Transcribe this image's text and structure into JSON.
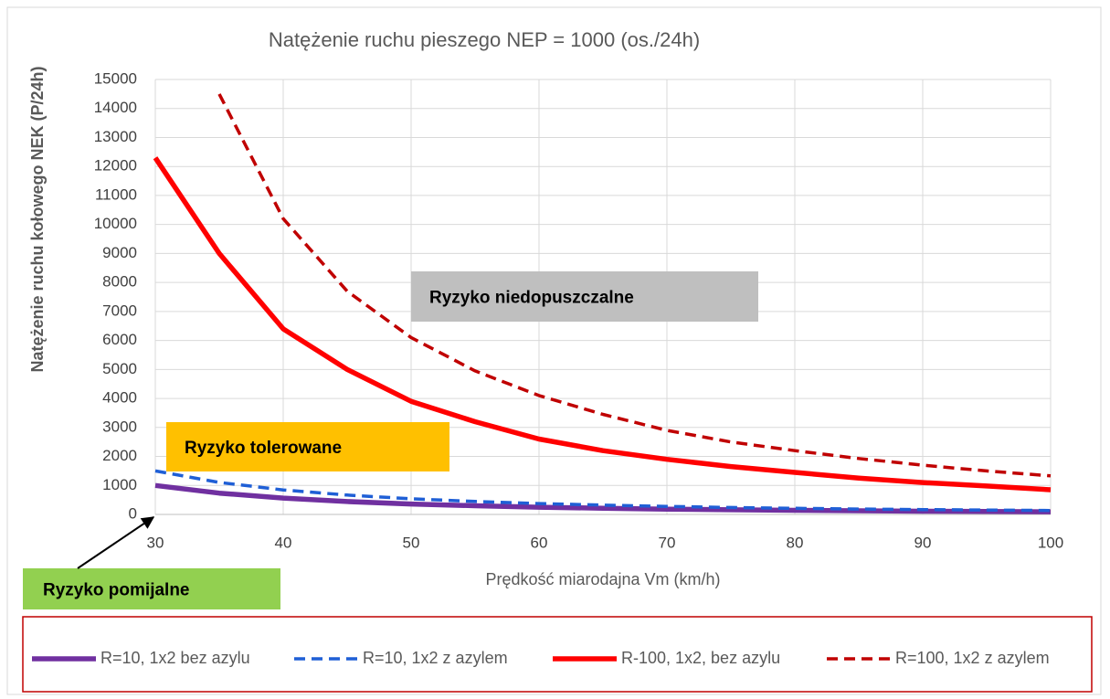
{
  "chart_data": {
    "type": "line",
    "title": "Natężenie ruchu pieszego NEP = 1000 (os./24h)",
    "x_label": "Prędkość miarodajna Vm (km/h)",
    "y_label": "Natężenie ruchu kołowego NEK (P/24h)",
    "x": [
      30,
      35,
      40,
      45,
      50,
      55,
      60,
      65,
      70,
      75,
      80,
      85,
      90,
      95,
      100
    ],
    "series": [
      {
        "name": "R=10, 1x2 bez azylu",
        "color": "#7030a0",
        "line_style": "solid",
        "values": [
          1000,
          735,
          563,
          445,
          360,
          298,
          250,
          213,
          184,
          160,
          141,
          125,
          111,
          100,
          90
        ]
      },
      {
        "name": "R=10, 1x2 z azylem",
        "color": "#1f5fd6",
        "line_style": "dashed",
        "values": [
          1500,
          1102,
          844,
          667,
          540,
          446,
          375,
          320,
          276,
          240,
          211,
          187,
          167,
          150,
          135
        ]
      },
      {
        "name": "R-100, 1x2, bez azylu",
        "color": "#ff0000",
        "line_style": "solid",
        "values": [
          12300,
          9000,
          6400,
          5000,
          3900,
          3200,
          2600,
          2200,
          1900,
          1650,
          1450,
          1250,
          1100,
          980,
          850
        ]
      },
      {
        "name": "R=100, 1x2 z azylem",
        "color": "#c00000",
        "line_style": "dashed",
        "values": [
          null,
          14500,
          10200,
          7700,
          6100,
          4950,
          4100,
          3450,
          2900,
          2500,
          2200,
          1930,
          1700,
          1500,
          1330
        ]
      }
    ],
    "xlim": [
      30,
      100
    ],
    "xticks": [
      30,
      40,
      50,
      60,
      70,
      80,
      90,
      100
    ],
    "ylim": [
      0,
      15000
    ],
    "yticks": [
      0,
      1000,
      2000,
      3000,
      4000,
      5000,
      6000,
      7000,
      8000,
      9000,
      10000,
      11000,
      12000,
      13000,
      14000,
      15000
    ],
    "grid": true,
    "legend": "bottom",
    "annotations": [
      {
        "text": "Ryzyko niedopuszczalne",
        "color": "#bfbfbf"
      },
      {
        "text": "Ryzyko tolerowane",
        "color": "#ffc000"
      },
      {
        "text": "Ryzyko pomijalne",
        "color": "#92d050"
      }
    ]
  }
}
